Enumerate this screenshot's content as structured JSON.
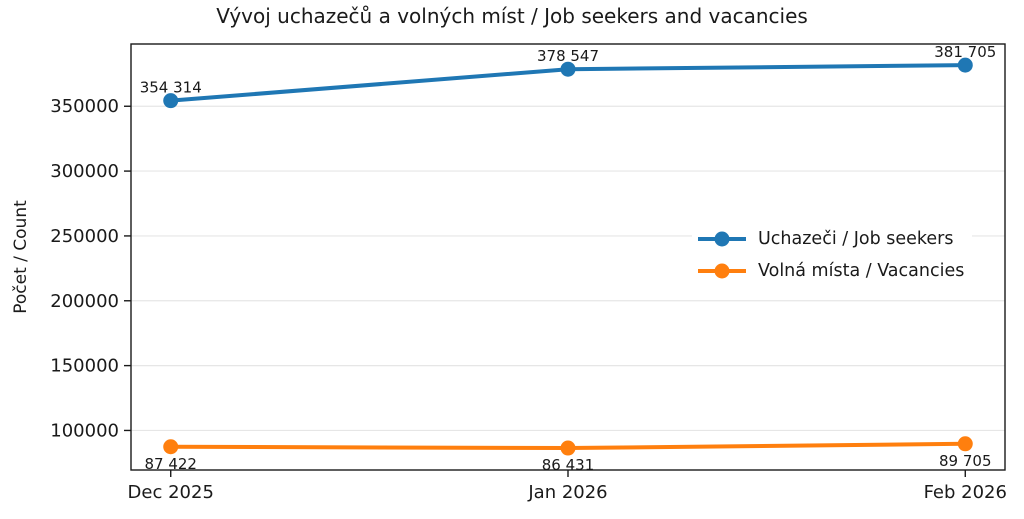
{
  "chart_data": {
    "type": "line",
    "title": "Vývoj uchazečů a volných míst / Job seekers and vacancies",
    "ylabel": "Počet / Count",
    "xlabel": "",
    "categories": [
      "Dec 2025",
      "Jan 2026",
      "Feb 2026"
    ],
    "series": [
      {
        "name": "Uchazeči / Job seekers",
        "color": "#1f77b4",
        "values": [
          354314,
          378547,
          381705
        ],
        "point_labels": [
          "354 314",
          "378 547",
          "381 705"
        ],
        "label_side": "above"
      },
      {
        "name": "Volná místa / Vacancies",
        "color": "#ff7f0e",
        "values": [
          87422,
          86431,
          89705
        ],
        "point_labels": [
          "87 422",
          "86 431",
          "89 705"
        ],
        "label_side": "below"
      }
    ],
    "yticks": [
      100000,
      150000,
      200000,
      250000,
      300000,
      350000
    ],
    "ylim": [
      69500,
      398000
    ],
    "grid": "horizontal",
    "grid_color": "#e6e6e6",
    "axis_color": "#1a1a1a",
    "legend_position": "center-right"
  }
}
